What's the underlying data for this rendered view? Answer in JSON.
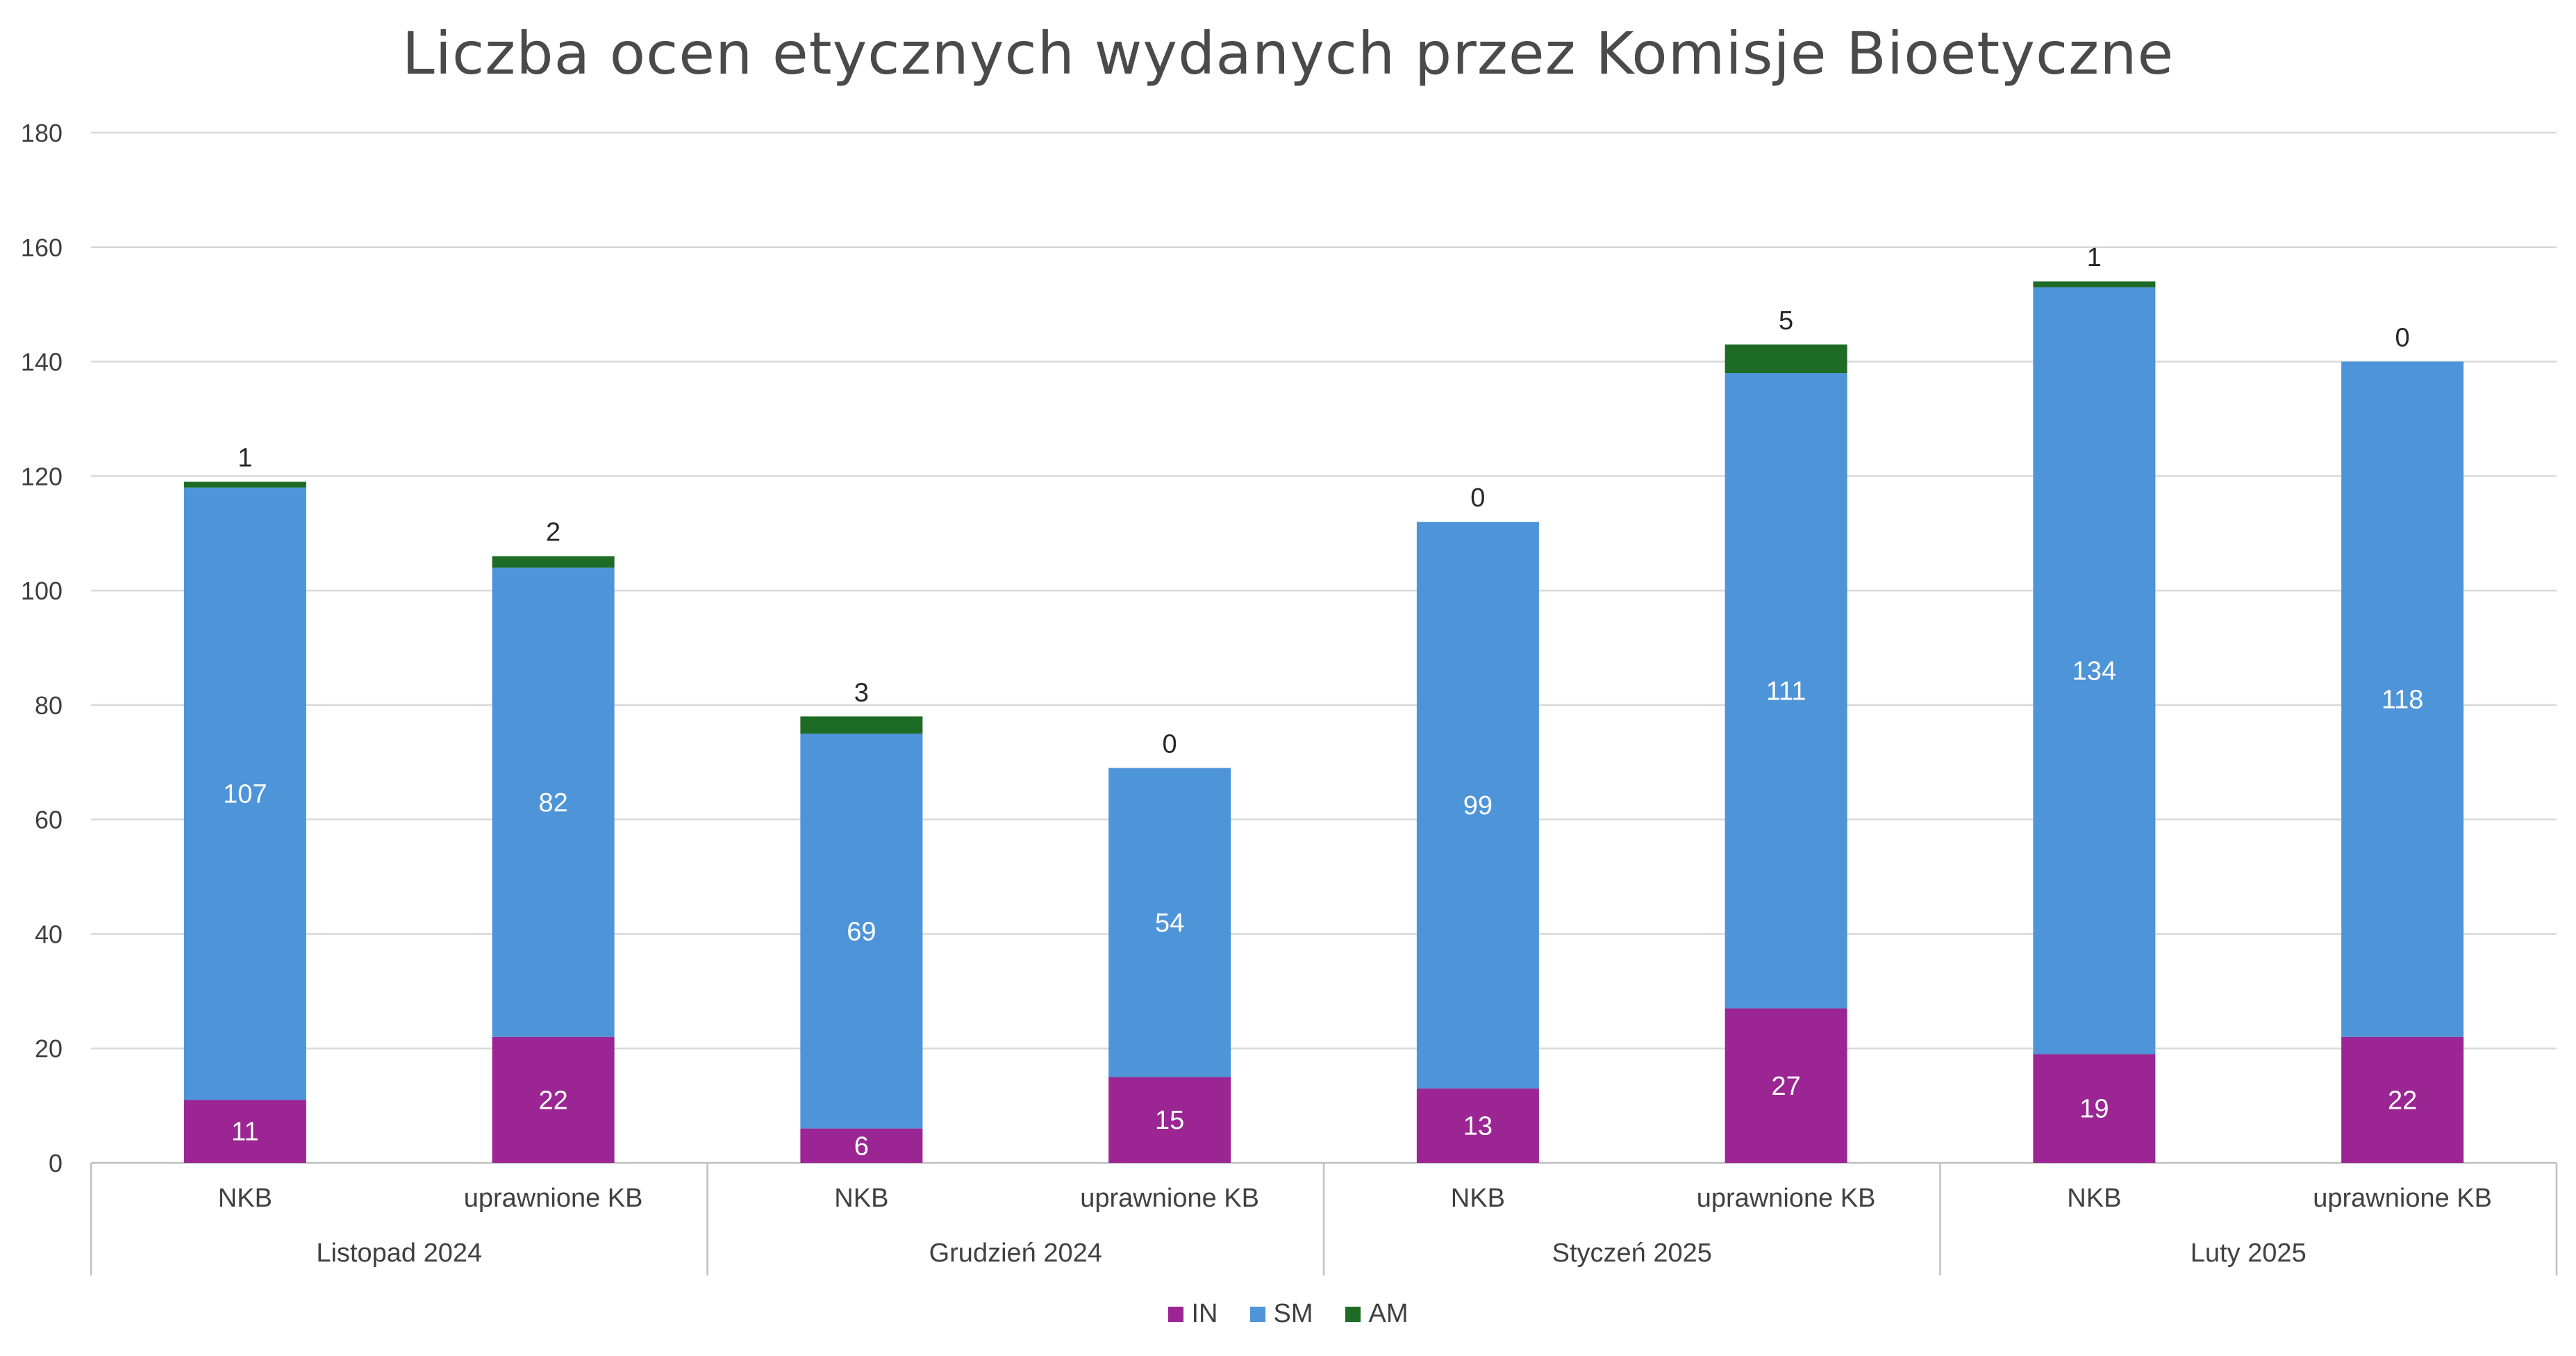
{
  "chart_data": {
    "type": "bar",
    "stacked": true,
    "title": "Liczba ocen etycznych wydanych przez Komisje Bioetyczne",
    "xlabel": "",
    "ylabel": "",
    "ylim": [
      0,
      180
    ],
    "yticks": [
      0,
      20,
      40,
      60,
      80,
      100,
      120,
      140,
      160,
      180
    ],
    "grid": true,
    "legend_position": "bottom",
    "groups": [
      {
        "label": "Listopad 2024",
        "categories": [
          "NKB",
          "uprawnione KB"
        ]
      },
      {
        "label": "Grudzień 2024",
        "categories": [
          "NKB",
          "uprawnione KB"
        ]
      },
      {
        "label": "Styczeń 2025",
        "categories": [
          "NKB",
          "uprawnione KB"
        ]
      },
      {
        "label": "Luty 2025",
        "categories": [
          "NKB",
          "uprawnione KB"
        ]
      }
    ],
    "categories": [
      "NKB",
      "uprawnione KB",
      "NKB",
      "uprawnione KB",
      "NKB",
      "uprawnione KB",
      "NKB",
      "uprawnione KB"
    ],
    "series": [
      {
        "name": "IN",
        "color": "#9B2592",
        "values": [
          11,
          22,
          6,
          15,
          13,
          27,
          19,
          22
        ]
      },
      {
        "name": "SM",
        "color": "#4E94D8",
        "values": [
          107,
          82,
          69,
          54,
          99,
          111,
          134,
          118
        ]
      },
      {
        "name": "AM",
        "color": "#1E6B25",
        "values": [
          1,
          2,
          3,
          0,
          0,
          5,
          1,
          0
        ]
      }
    ]
  }
}
